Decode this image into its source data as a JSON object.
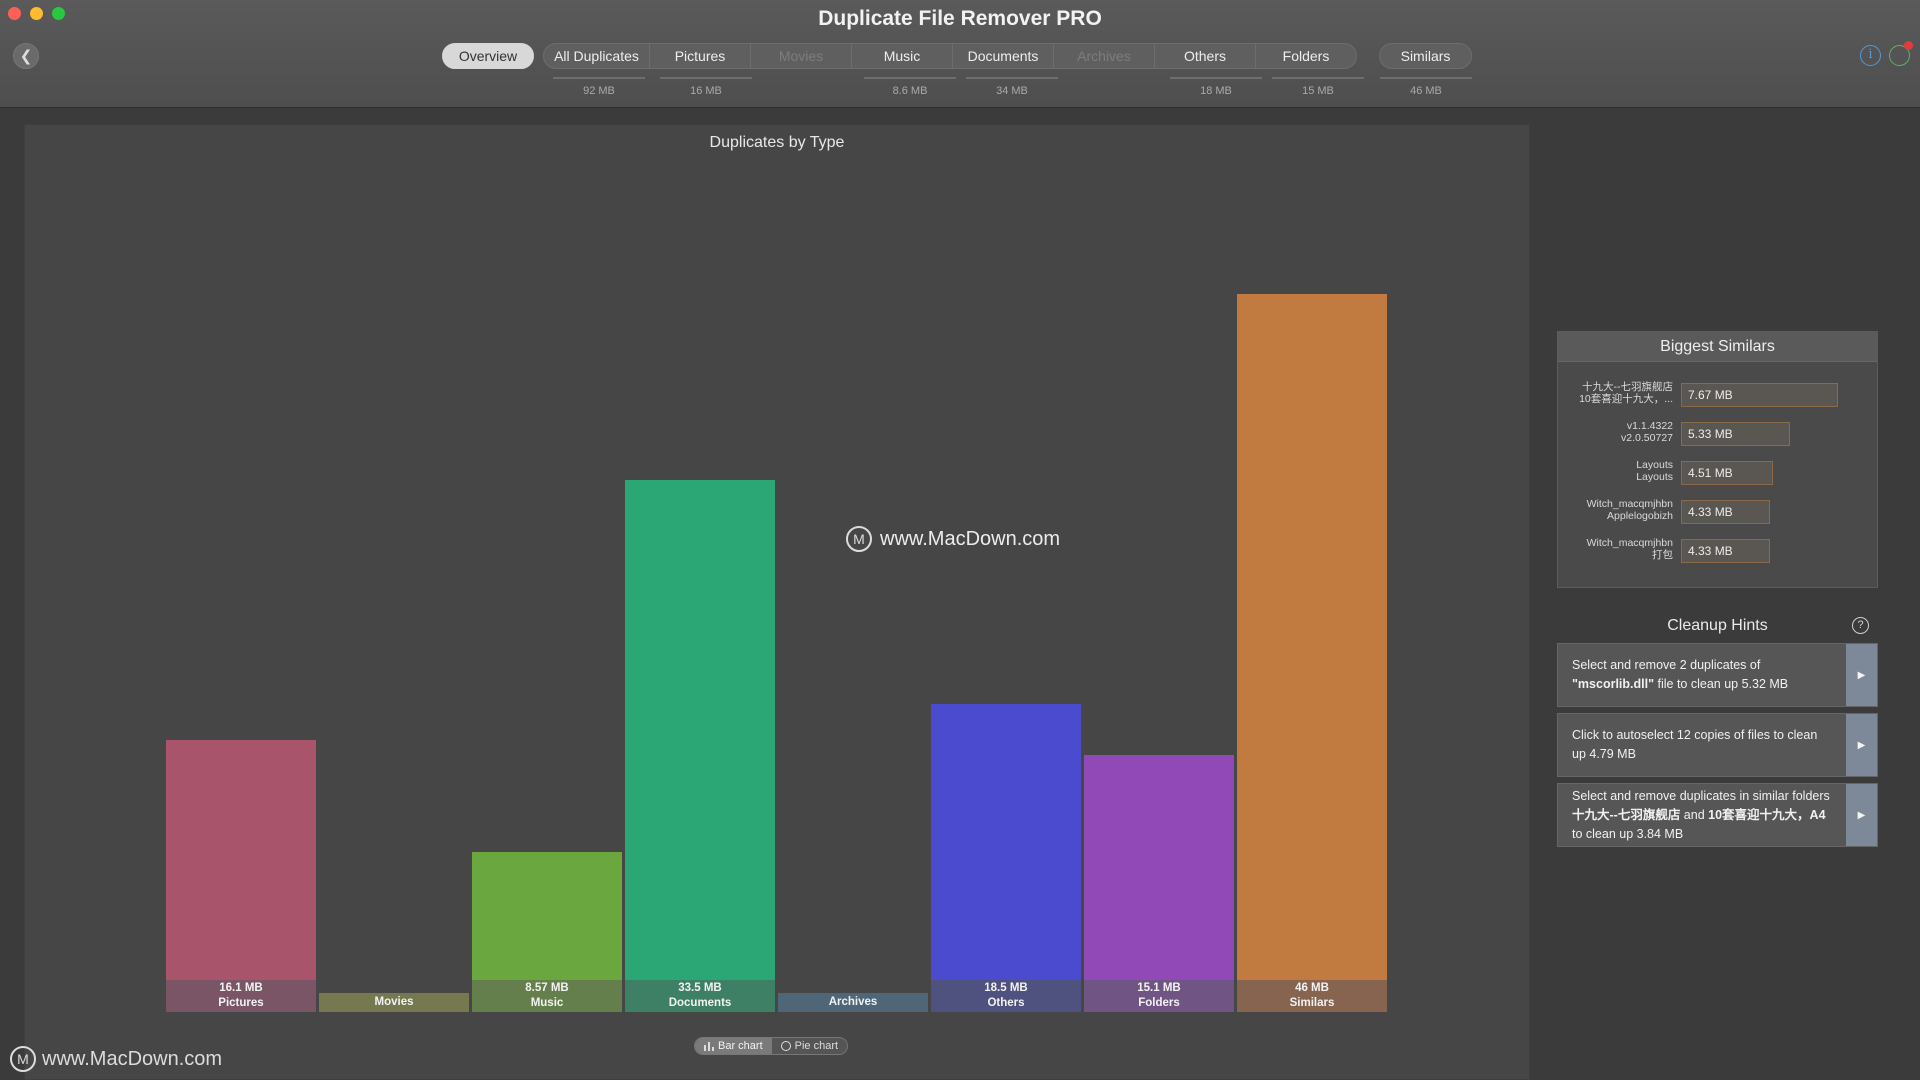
{
  "window": {
    "title": "Duplicate File Remover PRO"
  },
  "toolbar": {
    "tabs": [
      {
        "label": "Overview",
        "size": ""
      },
      {
        "label": "All Duplicates",
        "size": "92 MB"
      },
      {
        "label": "Pictures",
        "size": "16 MB"
      },
      {
        "label": "Movies",
        "size": ""
      },
      {
        "label": "Music",
        "size": "8.6 MB"
      },
      {
        "label": "Documents",
        "size": "34 MB"
      },
      {
        "label": "Archives",
        "size": ""
      },
      {
        "label": "Others",
        "size": "18 MB"
      },
      {
        "label": "Folders",
        "size": "15 MB"
      },
      {
        "label": "Similars",
        "size": "46 MB"
      }
    ]
  },
  "watermark": {
    "text": "www.MacDown.com",
    "logo_letter": "M"
  },
  "chart_data": {
    "type": "bar",
    "title": "Duplicates by Type",
    "categories": [
      "Pictures",
      "Movies",
      "Music",
      "Documents",
      "Archives",
      "Others",
      "Folders",
      "Similars"
    ],
    "values": [
      16.1,
      0,
      8.57,
      33.5,
      0,
      18.5,
      15.1,
      46
    ],
    "value_labels": [
      "16.1 MB",
      "",
      "8.57 MB",
      "33.5 MB",
      "",
      "18.5 MB",
      "15.1 MB",
      "46 MB"
    ],
    "unit": "MB",
    "colors": [
      "#a8546a",
      "#7a7f4e",
      "#6aa83f",
      "#2ba776",
      "#4d6a80",
      "#4a4bce",
      "#9249b8",
      "#c17b40"
    ],
    "label_colors": [
      "#7a5565",
      "#76784f",
      "#657f4c",
      "#3d8065",
      "#4f6678",
      "#4f517e",
      "#705584",
      "#86644f"
    ],
    "ylim": [
      0,
      46
    ],
    "grid": false,
    "legend": "none"
  },
  "chart_toggle": {
    "bar_label": "Bar chart",
    "pie_label": "Pie chart",
    "active": "bar"
  },
  "biggest_similars": {
    "title": "Biggest Similars",
    "items": [
      {
        "name1": "十九大--七羽旗舰店",
        "name2": "10套喜迎十九大，...",
        "size_label": "7.67 MB",
        "size": 7.67
      },
      {
        "name1": "v1.1.4322",
        "name2": "v2.0.50727",
        "size_label": "5.33 MB",
        "size": 5.33
      },
      {
        "name1": "Layouts",
        "name2": "Layouts",
        "size_label": "4.51 MB",
        "size": 4.51
      },
      {
        "name1": "Witch_macqmjhbn",
        "name2": "Applelogobizh",
        "size_label": "4.33 MB",
        "size": 4.33
      },
      {
        "name1": "Witch_macqmjhbn",
        "name2": "打包",
        "size_label": "4.33 MB",
        "size": 4.33
      }
    ]
  },
  "cleanup_hints": {
    "title": "Cleanup Hints",
    "hints": [
      {
        "t1": "Select and remove 2 duplicates of ",
        "b1": "\"mscorlib.dll\"",
        "t2": " file to clean up 5.32 MB",
        "b2": "",
        "t3": "",
        "b3": "",
        "t4": ""
      },
      {
        "t1": "Click to autoselect 12 copies of files to clean up 4.79 MB",
        "b1": "",
        "t2": "",
        "b2": "",
        "t3": "",
        "b3": "",
        "t4": ""
      },
      {
        "t1": "Select and remove duplicates in similar folders ",
        "b1": "十九大--七羽旗舰店",
        "t2": " and ",
        "b2": "10套喜迎十九大，A4",
        "t3": " to clean up 3.84 MB",
        "b3": "",
        "t4": ""
      }
    ]
  }
}
